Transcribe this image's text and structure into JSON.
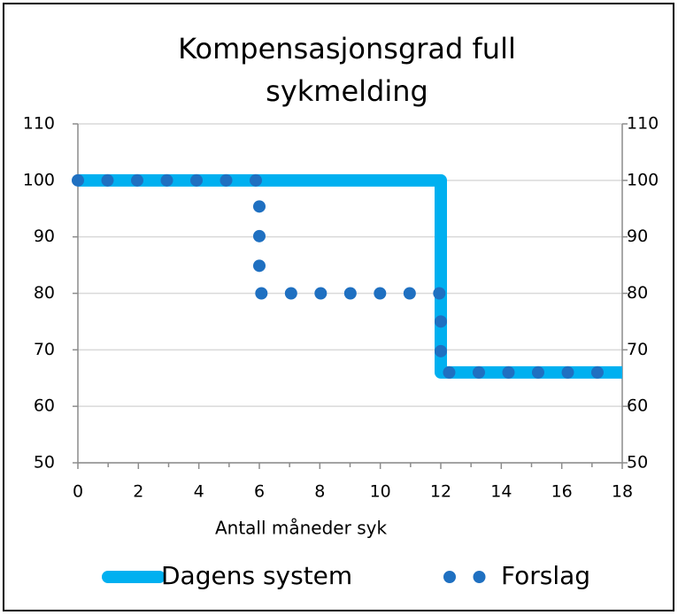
{
  "chart_data": {
    "type": "line",
    "title": [
      "Kompensasjonsgrad full",
      "sykmelding"
    ],
    "x_label": "Antall måneder syk",
    "series": [
      {
        "name": "Dagens system",
        "color": "#00b0f0",
        "style": "solid",
        "x": [
          0,
          12,
          12,
          18
        ],
        "values": [
          100,
          100,
          66,
          66
        ]
      },
      {
        "name": "Forslag",
        "color": "#1f70c1",
        "style": "dotted",
        "x": [
          0,
          6,
          6,
          12,
          12,
          18
        ],
        "values": [
          100,
          100,
          80,
          80,
          66,
          66
        ]
      }
    ],
    "xlim": [
      0,
      18
    ],
    "xticks": [
      0,
      2,
      4,
      6,
      8,
      10,
      12,
      14,
      16,
      18
    ],
    "ylim": [
      50,
      110
    ],
    "yticks": [
      50,
      60,
      70,
      80,
      90,
      100,
      110
    ],
    "y2lim": [
      50,
      110
    ],
    "y2ticks": [
      50,
      60,
      70,
      80,
      90,
      100,
      110
    ],
    "grid": true,
    "legend": "bottom"
  }
}
